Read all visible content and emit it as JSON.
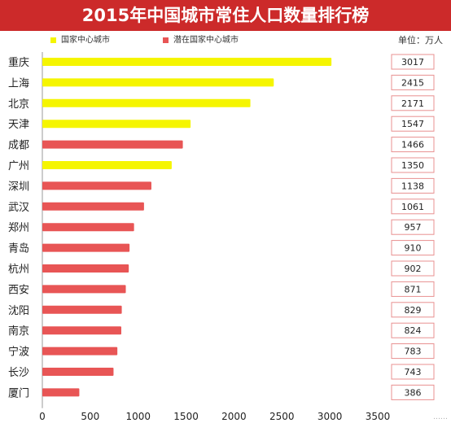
{
  "title": "2015年中国城市常住人口数量排行榜",
  "unit_label": "单位：万人",
  "watermark": "……",
  "colors": {
    "title_bg": "#cc2a2a",
    "national": "#f5f500",
    "potential": "#e85555",
    "value_box_border": "#e89090"
  },
  "chart_data": {
    "type": "bar",
    "orientation": "horizontal",
    "title": "2015年中国城市常住人口数量排行榜",
    "xlim": [
      0,
      3500
    ],
    "xticks": [
      0,
      500,
      1000,
      1500,
      2000,
      2500,
      3000,
      3500
    ],
    "grid": false,
    "legend_position": "top-left",
    "series": [
      {
        "name": "国家中心城市",
        "color": "#f5f500"
      },
      {
        "name": "潜在国家中心城市",
        "color": "#e85555"
      }
    ],
    "categories": [
      "重庆",
      "上海",
      "北京",
      "天津",
      "成都",
      "广州",
      "深圳",
      "武汉",
      "郑州",
      "青岛",
      "杭州",
      "西安",
      "沈阳",
      "南京",
      "宁波",
      "长沙",
      "厦门"
    ],
    "values": [
      3017,
      2415,
      2171,
      1547,
      1466,
      1350,
      1138,
      1061,
      957,
      910,
      902,
      871,
      829,
      824,
      783,
      743,
      386
    ],
    "series_index": [
      0,
      0,
      0,
      0,
      1,
      0,
      1,
      1,
      1,
      1,
      1,
      1,
      1,
      1,
      1,
      1,
      1
    ]
  }
}
